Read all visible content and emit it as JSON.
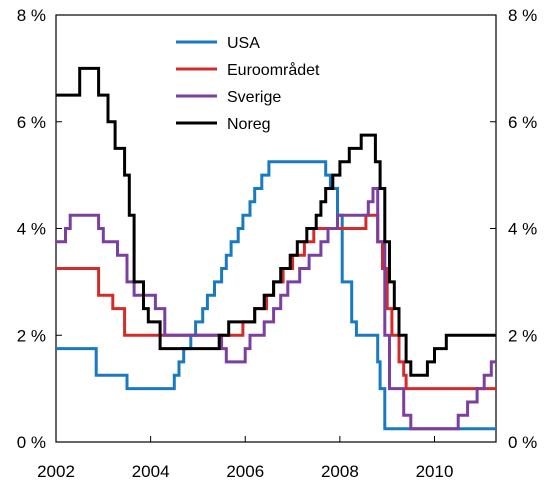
{
  "chart_data": {
    "type": "line",
    "title": "",
    "xlabel": "",
    "ylabel": "",
    "xlim": [
      2002,
      2011.3
    ],
    "ylim": [
      0,
      8
    ],
    "x_ticks": [
      2002,
      2004,
      2006,
      2008,
      2010
    ],
    "x_tick_labels": [
      "2002",
      "2004",
      "2006",
      "2008",
      "2010"
    ],
    "y_ticks": [
      0,
      2,
      4,
      6,
      8
    ],
    "y_tick_labels_left": [
      "0 %",
      "2 %",
      "4 %",
      "6 %",
      "8 %"
    ],
    "y_tick_labels_right": [
      "0 %",
      "2 %",
      "4 %",
      "6 %",
      "8 %"
    ],
    "grid": false,
    "legend_position": "top-center",
    "step": true,
    "series": [
      {
        "name": "USA",
        "color": "#1a7ac0",
        "points": [
          [
            2002.0,
            1.75
          ],
          [
            2002.85,
            1.25
          ],
          [
            2003.5,
            1.0
          ],
          [
            2004.5,
            1.25
          ],
          [
            2004.6,
            1.5
          ],
          [
            2004.7,
            1.75
          ],
          [
            2004.85,
            2.0
          ],
          [
            2004.95,
            2.25
          ],
          [
            2005.1,
            2.5
          ],
          [
            2005.2,
            2.75
          ],
          [
            2005.35,
            3.0
          ],
          [
            2005.5,
            3.25
          ],
          [
            2005.6,
            3.5
          ],
          [
            2005.7,
            3.75
          ],
          [
            2005.85,
            4.0
          ],
          [
            2005.95,
            4.25
          ],
          [
            2006.1,
            4.5
          ],
          [
            2006.2,
            4.75
          ],
          [
            2006.35,
            5.0
          ],
          [
            2006.5,
            5.25
          ],
          [
            2007.7,
            5.0
          ],
          [
            2007.8,
            4.75
          ],
          [
            2007.95,
            4.25
          ],
          [
            2008.05,
            3.0
          ],
          [
            2008.25,
            2.25
          ],
          [
            2008.35,
            2.0
          ],
          [
            2008.8,
            1.5
          ],
          [
            2008.85,
            1.0
          ],
          [
            2008.95,
            0.25
          ],
          [
            2011.3,
            0.25
          ]
        ]
      },
      {
        "name": "Euroområdet",
        "color": "#d42a2a",
        "points": [
          [
            2002.0,
            3.25
          ],
          [
            2002.9,
            2.75
          ],
          [
            2003.2,
            2.5
          ],
          [
            2003.45,
            2.0
          ],
          [
            2005.95,
            2.25
          ],
          [
            2006.2,
            2.5
          ],
          [
            2006.45,
            2.75
          ],
          [
            2006.6,
            3.0
          ],
          [
            2006.8,
            3.25
          ],
          [
            2007.0,
            3.5
          ],
          [
            2007.25,
            3.75
          ],
          [
            2007.45,
            4.0
          ],
          [
            2008.55,
            4.25
          ],
          [
            2008.8,
            3.75
          ],
          [
            2008.9,
            3.25
          ],
          [
            2009.0,
            2.5
          ],
          [
            2009.1,
            2.0
          ],
          [
            2009.25,
            1.5
          ],
          [
            2009.35,
            1.25
          ],
          [
            2009.4,
            1.0
          ],
          [
            2011.3,
            1.0
          ]
        ]
      },
      {
        "name": "Sverige",
        "color": "#7b3fa0",
        "points": [
          [
            2002.0,
            3.75
          ],
          [
            2002.2,
            4.0
          ],
          [
            2002.3,
            4.25
          ],
          [
            2002.9,
            4.0
          ],
          [
            2003.0,
            3.75
          ],
          [
            2003.3,
            3.5
          ],
          [
            2003.5,
            3.0
          ],
          [
            2003.65,
            2.75
          ],
          [
            2004.1,
            2.5
          ],
          [
            2004.3,
            2.0
          ],
          [
            2005.5,
            1.75
          ],
          [
            2005.6,
            1.5
          ],
          [
            2006.0,
            1.75
          ],
          [
            2006.1,
            2.0
          ],
          [
            2006.4,
            2.25
          ],
          [
            2006.6,
            2.5
          ],
          [
            2006.75,
            2.75
          ],
          [
            2006.9,
            3.0
          ],
          [
            2007.15,
            3.25
          ],
          [
            2007.35,
            3.5
          ],
          [
            2007.6,
            3.75
          ],
          [
            2007.75,
            4.0
          ],
          [
            2007.95,
            4.25
          ],
          [
            2008.6,
            4.5
          ],
          [
            2008.7,
            4.75
          ],
          [
            2008.8,
            3.75
          ],
          [
            2008.95,
            2.0
          ],
          [
            2009.05,
            1.0
          ],
          [
            2009.35,
            0.5
          ],
          [
            2009.5,
            0.25
          ],
          [
            2010.5,
            0.5
          ],
          [
            2010.7,
            0.75
          ],
          [
            2010.9,
            1.0
          ],
          [
            2011.05,
            1.25
          ],
          [
            2011.2,
            1.5
          ],
          [
            2011.3,
            1.5
          ]
        ]
      },
      {
        "name": "Noreg",
        "color": "#000000",
        "points": [
          [
            2002.0,
            6.5
          ],
          [
            2002.5,
            7.0
          ],
          [
            2002.9,
            6.5
          ],
          [
            2003.1,
            6.0
          ],
          [
            2003.25,
            5.5
          ],
          [
            2003.45,
            5.0
          ],
          [
            2003.55,
            4.25
          ],
          [
            2003.65,
            3.0
          ],
          [
            2003.85,
            2.5
          ],
          [
            2003.95,
            2.25
          ],
          [
            2004.2,
            2.0
          ],
          [
            2004.2,
            1.75
          ],
          [
            2005.45,
            2.0
          ],
          [
            2005.65,
            2.25
          ],
          [
            2006.2,
            2.5
          ],
          [
            2006.4,
            2.75
          ],
          [
            2006.6,
            3.0
          ],
          [
            2006.75,
            3.25
          ],
          [
            2006.95,
            3.5
          ],
          [
            2007.1,
            3.75
          ],
          [
            2007.3,
            4.0
          ],
          [
            2007.5,
            4.25
          ],
          [
            2007.6,
            4.5
          ],
          [
            2007.7,
            4.75
          ],
          [
            2007.85,
            5.0
          ],
          [
            2008.0,
            5.25
          ],
          [
            2008.2,
            5.5
          ],
          [
            2008.45,
            5.75
          ],
          [
            2008.75,
            5.25
          ],
          [
            2008.85,
            4.75
          ],
          [
            2008.95,
            3.75
          ],
          [
            2009.05,
            3.0
          ],
          [
            2009.15,
            2.5
          ],
          [
            2009.25,
            2.0
          ],
          [
            2009.4,
            1.5
          ],
          [
            2009.5,
            1.25
          ],
          [
            2009.85,
            1.5
          ],
          [
            2010.0,
            1.75
          ],
          [
            2010.25,
            2.0
          ],
          [
            2011.3,
            2.0
          ]
        ]
      }
    ]
  }
}
